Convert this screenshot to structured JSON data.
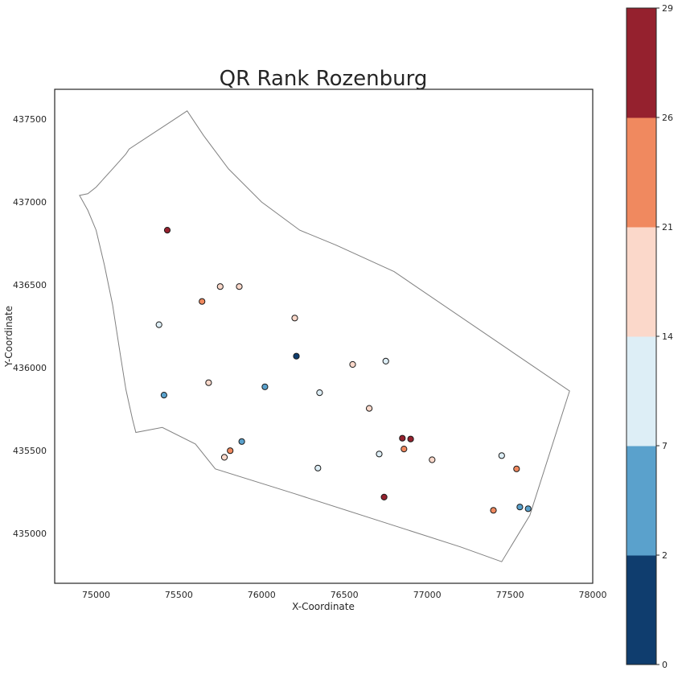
{
  "chart_data": {
    "type": "scatter",
    "title": "QR Rank Rozenburg",
    "xlabel": "X-Coordinate",
    "ylabel": "Y-Coordinate",
    "xlim": [
      74750,
      78000
    ],
    "ylim": [
      434700,
      437680
    ],
    "xticks": [
      "75000",
      "75500",
      "76000",
      "76500",
      "77000",
      "77500",
      "78000"
    ],
    "yticks": [
      "435000",
      "435500",
      "436000",
      "436500",
      "437000",
      "437500"
    ],
    "grid": false,
    "boundary": [
      [
        75550,
        437550
      ],
      [
        75460,
        437490
      ],
      [
        75200,
        437320
      ],
      [
        75180,
        437290
      ],
      [
        75100,
        437200
      ],
      [
        75000,
        437090
      ],
      [
        74950,
        437050
      ],
      [
        74900,
        437040
      ],
      [
        74950,
        436950
      ],
      [
        75000,
        436830
      ],
      [
        75050,
        436620
      ],
      [
        75100,
        436380
      ],
      [
        75140,
        436120
      ],
      [
        75180,
        435870
      ],
      [
        75220,
        435690
      ],
      [
        75240,
        435610
      ],
      [
        75400,
        435640
      ],
      [
        75600,
        435540
      ],
      [
        75720,
        435390
      ],
      [
        76200,
        435240
      ],
      [
        76700,
        435080
      ],
      [
        77200,
        434920
      ],
      [
        77450,
        434830
      ],
      [
        77620,
        435110
      ],
      [
        77860,
        435860
      ],
      [
        76800,
        436580
      ],
      [
        76450,
        436740
      ],
      [
        76230,
        436830
      ],
      [
        76000,
        437000
      ],
      [
        75800,
        437200
      ],
      [
        75650,
        437400
      ],
      [
        75550,
        437550
      ]
    ],
    "points": [
      {
        "x": 75430,
        "y": 436830,
        "value": 28
      },
      {
        "x": 75640,
        "y": 436400,
        "value": 24
      },
      {
        "x": 75750,
        "y": 436490,
        "value": 18
      },
      {
        "x": 75865,
        "y": 436490,
        "value": 19
      },
      {
        "x": 75380,
        "y": 436260,
        "value": 12
      },
      {
        "x": 76200,
        "y": 436300,
        "value": 18
      },
      {
        "x": 76210,
        "y": 436070,
        "value": 1
      },
      {
        "x": 75680,
        "y": 435910,
        "value": 19
      },
      {
        "x": 75410,
        "y": 435835,
        "value": 4
      },
      {
        "x": 76020,
        "y": 435885,
        "value": 4
      },
      {
        "x": 76350,
        "y": 435850,
        "value": 10
      },
      {
        "x": 76550,
        "y": 436020,
        "value": 18
      },
      {
        "x": 76750,
        "y": 436040,
        "value": 12
      },
      {
        "x": 76650,
        "y": 435755,
        "value": 20
      },
      {
        "x": 75880,
        "y": 435555,
        "value": 4
      },
      {
        "x": 75810,
        "y": 435500,
        "value": 24
      },
      {
        "x": 75775,
        "y": 435460,
        "value": 19
      },
      {
        "x": 76340,
        "y": 435395,
        "value": 12
      },
      {
        "x": 76710,
        "y": 435480,
        "value": 11
      },
      {
        "x": 76850,
        "y": 435575,
        "value": 28
      },
      {
        "x": 76900,
        "y": 435570,
        "value": 28
      },
      {
        "x": 76860,
        "y": 435510,
        "value": 23
      },
      {
        "x": 77030,
        "y": 435445,
        "value": 19
      },
      {
        "x": 76740,
        "y": 435220,
        "value": 28
      },
      {
        "x": 77450,
        "y": 435470,
        "value": 12
      },
      {
        "x": 77540,
        "y": 435390,
        "value": 24
      },
      {
        "x": 77400,
        "y": 435140,
        "value": 24
      },
      {
        "x": 77560,
        "y": 435160,
        "value": 4
      },
      {
        "x": 77610,
        "y": 435150,
        "value": 5
      }
    ],
    "colorbar": {
      "boundaries": [
        0,
        2,
        7,
        14,
        21,
        26,
        29
      ],
      "tick_labels": [
        "0",
        "2",
        "7",
        "14",
        "21",
        "26",
        "29"
      ],
      "colors": [
        "#0f3d6e",
        "#5aa1cc",
        "#ddeef6",
        "#fbd8ca",
        "#f0895f",
        "#95212e"
      ]
    }
  }
}
